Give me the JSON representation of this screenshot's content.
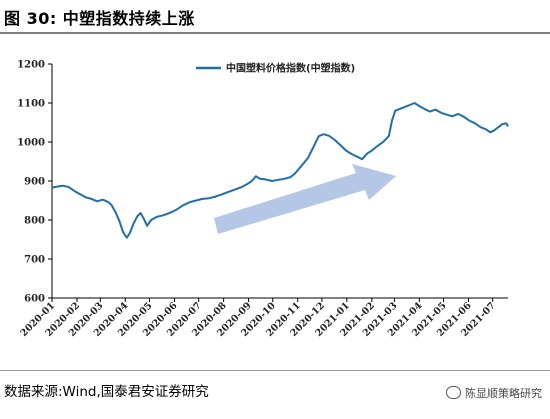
{
  "header": {
    "title": "图 30:  中塑指数持续上涨"
  },
  "footer": {
    "source": "数据来源:Wind,国泰君安证券研究",
    "watermark": "陈显顺策略研究"
  },
  "colors": {
    "line": "#1f6fa8",
    "arrow": "#b4c7e7",
    "axis": "#000000"
  },
  "chart_data": {
    "type": "line",
    "title": "",
    "xlabel": "",
    "ylabel": "",
    "ylim": [
      600,
      1200
    ],
    "yticks": [
      600,
      700,
      800,
      900,
      1000,
      1100,
      1200
    ],
    "xlim": [
      "2020-01-01",
      "2021-07-20"
    ],
    "xticks": [
      "2020-01",
      "2020-02",
      "2020-03",
      "2020-04",
      "2020-05",
      "2020-06",
      "2020-07",
      "2020-08",
      "2020-09",
      "2020-10",
      "2020-11",
      "2020-12",
      "2021-01",
      "2021-02",
      "2021-03",
      "2021-04",
      "2021-05",
      "2021-06",
      "2021-07"
    ],
    "grid": false,
    "legend": "top-center",
    "series": [
      {
        "name": "中国塑料价格指数(中塑指数)",
        "points": [
          [
            "2020-01-01",
            883
          ],
          [
            "2020-01-08",
            886
          ],
          [
            "2020-01-15",
            888
          ],
          [
            "2020-01-22",
            884
          ],
          [
            "2020-01-29",
            874
          ],
          [
            "2020-02-05",
            866
          ],
          [
            "2020-02-12",
            858
          ],
          [
            "2020-02-19",
            854
          ],
          [
            "2020-02-26",
            848
          ],
          [
            "2020-03-04",
            852
          ],
          [
            "2020-03-11",
            846
          ],
          [
            "2020-03-15",
            838
          ],
          [
            "2020-03-20",
            820
          ],
          [
            "2020-03-25",
            795
          ],
          [
            "2020-03-29",
            770
          ],
          [
            "2020-04-01",
            760
          ],
          [
            "2020-04-03",
            755
          ],
          [
            "2020-04-07",
            768
          ],
          [
            "2020-04-11",
            790
          ],
          [
            "2020-04-16",
            810
          ],
          [
            "2020-04-20",
            818
          ],
          [
            "2020-04-24",
            803
          ],
          [
            "2020-04-28",
            785
          ],
          [
            "2020-05-03",
            800
          ],
          [
            "2020-05-10",
            808
          ],
          [
            "2020-05-18",
            812
          ],
          [
            "2020-05-26",
            818
          ],
          [
            "2020-06-03",
            826
          ],
          [
            "2020-06-12",
            838
          ],
          [
            "2020-06-20",
            846
          ],
          [
            "2020-06-28",
            850
          ],
          [
            "2020-07-06",
            854
          ],
          [
            "2020-07-14",
            856
          ],
          [
            "2020-07-22",
            860
          ],
          [
            "2020-07-30",
            866
          ],
          [
            "2020-08-07",
            872
          ],
          [
            "2020-08-15",
            878
          ],
          [
            "2020-08-23",
            884
          ],
          [
            "2020-08-31",
            893
          ],
          [
            "2020-09-05",
            900
          ],
          [
            "2020-09-10",
            912
          ],
          [
            "2020-09-15",
            906
          ],
          [
            "2020-09-22",
            904
          ],
          [
            "2020-09-30",
            900
          ],
          [
            "2020-10-08",
            903
          ],
          [
            "2020-10-16",
            906
          ],
          [
            "2020-10-23",
            910
          ],
          [
            "2020-10-28",
            918
          ],
          [
            "2020-11-02",
            930
          ],
          [
            "2020-11-08",
            945
          ],
          [
            "2020-11-14",
            960
          ],
          [
            "2020-11-20",
            985
          ],
          [
            "2020-11-27",
            1015
          ],
          [
            "2020-12-03",
            1020
          ],
          [
            "2020-12-10",
            1016
          ],
          [
            "2020-12-17",
            1005
          ],
          [
            "2020-12-24",
            992
          ],
          [
            "2020-12-31",
            978
          ],
          [
            "2021-01-08",
            968
          ],
          [
            "2021-01-14",
            962
          ],
          [
            "2021-01-20",
            956
          ],
          [
            "2021-01-26",
            970
          ],
          [
            "2021-02-01",
            978
          ],
          [
            "2021-02-08",
            990
          ],
          [
            "2021-02-15",
            1000
          ],
          [
            "2021-02-22",
            1015
          ],
          [
            "2021-02-26",
            1055
          ],
          [
            "2021-03-02",
            1080
          ],
          [
            "2021-03-08",
            1085
          ],
          [
            "2021-03-14",
            1090
          ],
          [
            "2021-03-20",
            1095
          ],
          [
            "2021-03-26",
            1100
          ],
          [
            "2021-04-01",
            1092
          ],
          [
            "2021-04-07",
            1085
          ],
          [
            "2021-04-14",
            1078
          ],
          [
            "2021-04-21",
            1083
          ],
          [
            "2021-04-28",
            1075
          ],
          [
            "2021-05-05",
            1070
          ],
          [
            "2021-05-12",
            1066
          ],
          [
            "2021-05-19",
            1072
          ],
          [
            "2021-05-26",
            1065
          ],
          [
            "2021-06-02",
            1055
          ],
          [
            "2021-06-09",
            1048
          ],
          [
            "2021-06-16",
            1038
          ],
          [
            "2021-06-23",
            1032
          ],
          [
            "2021-06-28",
            1025
          ],
          [
            "2021-07-03",
            1030
          ],
          [
            "2021-07-08",
            1038
          ],
          [
            "2021-07-13",
            1046
          ],
          [
            "2021-07-18",
            1048
          ],
          [
            "2021-07-20",
            1040
          ]
        ]
      }
    ]
  }
}
